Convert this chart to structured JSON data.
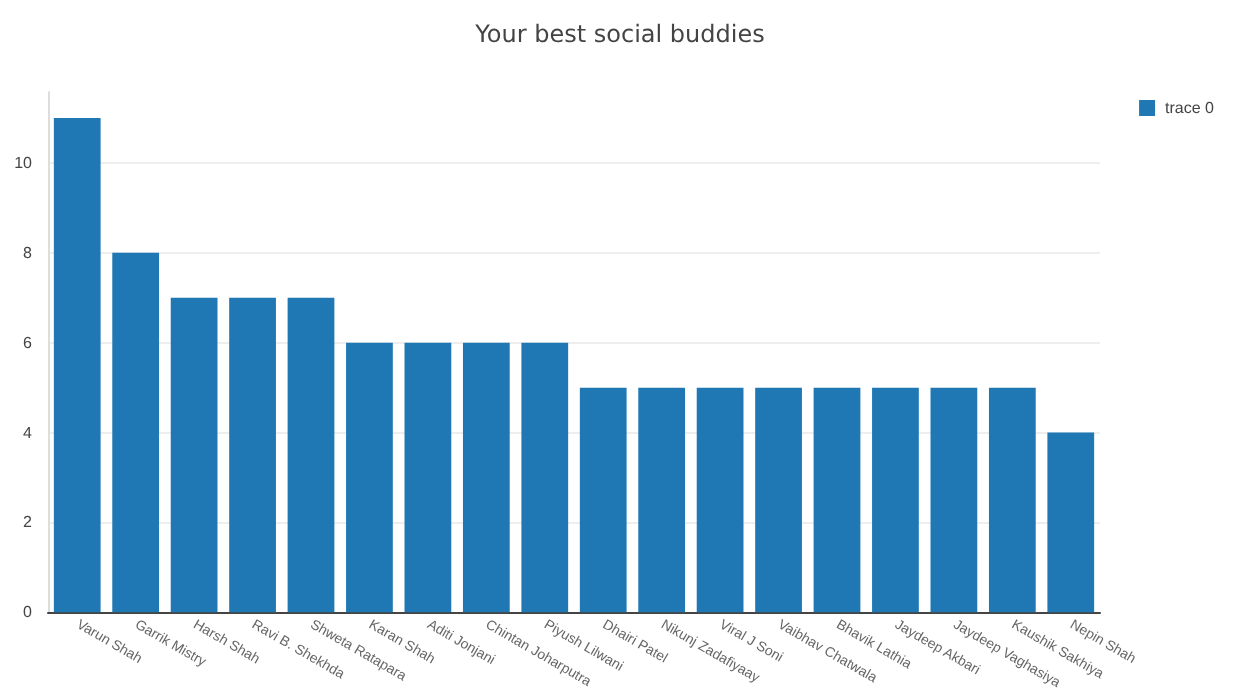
{
  "chart_data": {
    "type": "bar",
    "title": "Your best social buddies",
    "categories": [
      "Varun Shah",
      "Garrik Mistry",
      "Harsh Shah",
      "Ravi B. Shekhda",
      "Shweta Ratapara",
      "Karan Shah",
      "Aditi Jonjani",
      "Chintan Joharputra",
      "Piyush Lilwani",
      "Dhairi Patel",
      "Nikunj Zadafiyaay",
      "Viral J Soni",
      "Vaibhav Chatwala",
      "Bhavik Lathia",
      "Jaydeep Akbari",
      "Jaydeep Vaghasiya",
      "Kaushik Sakhiya",
      "Nepin Shah"
    ],
    "series": [
      {
        "name": "trace 0",
        "color": "#1f77b4",
        "values": [
          11,
          8,
          7,
          7,
          7,
          6,
          6,
          6,
          6,
          5,
          5,
          5,
          5,
          5,
          5,
          5,
          5,
          4
        ]
      }
    ],
    "ylim": [
      0,
      11.58
    ],
    "yticks": [
      0,
      2,
      4,
      6,
      8,
      10
    ],
    "grid": "y",
    "legend": "top right"
  }
}
